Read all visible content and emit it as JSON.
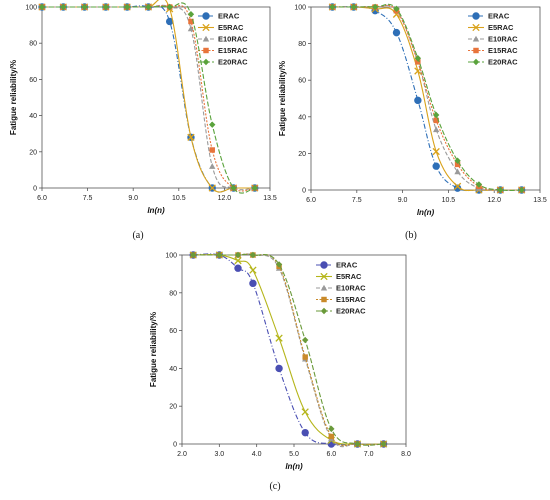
{
  "colors": {
    "ERAC": "#2e6fb7",
    "E5RAC": "#d9a21b",
    "E10RAC": "#9a9a9a",
    "E15RAC": "#e8743b",
    "E20RAC": "#5aa33c",
    "c_ERAC": "#4a4fb3",
    "c_E5RAC": "#b5b51a",
    "c_E10RAC": "#9a9a9a",
    "c_E15RAC": "#c98a2a",
    "c_E20RAC": "#6a9a3a"
  },
  "chart_data": [
    {
      "type": "line",
      "panel_label": "(a)",
      "xlabel": "ln(n)",
      "ylabel": "Fatigue reliability/%",
      "xlim": [
        6.0,
        13.5
      ],
      "ylim": [
        0,
        100
      ],
      "xticks": [
        "6.0",
        "7.5",
        "9.0",
        "10.5",
        "12.0",
        "13.5"
      ],
      "yticks": [
        "0",
        "20",
        "40",
        "60",
        "80",
        "100"
      ],
      "legend_position": "top-right",
      "x": [
        6.0,
        6.7,
        7.4,
        8.1,
        8.8,
        9.5,
        10.2,
        10.9,
        11.6,
        12.3,
        13.0
      ],
      "series": [
        {
          "name": "ERAC",
          "values": [
            100,
            100,
            100,
            100,
            100,
            100,
            92,
            28,
            0,
            0,
            0
          ]
        },
        {
          "name": "E5RAC",
          "values": [
            100,
            100,
            100,
            100,
            100,
            100,
            99,
            28,
            0,
            0,
            0
          ]
        },
        {
          "name": "E10RAC",
          "values": [
            100,
            100,
            100,
            100,
            100,
            100,
            100,
            88,
            12,
            0,
            0
          ]
        },
        {
          "name": "E15RAC",
          "values": [
            100,
            100,
            100,
            100,
            100,
            100,
            100,
            92,
            21,
            0,
            0
          ]
        },
        {
          "name": "E20RAC",
          "values": [
            100,
            100,
            100,
            100,
            100,
            100,
            100,
            96,
            35,
            0,
            0
          ]
        }
      ]
    },
    {
      "type": "line",
      "panel_label": "(b)",
      "xlabel": "ln(n)",
      "ylabel": "Fatigue reliability/%",
      "xlim": [
        6.0,
        13.5
      ],
      "ylim": [
        0,
        100
      ],
      "xticks": [
        "6.0",
        "7.5",
        "9.0",
        "10.5",
        "12.0",
        "13.5"
      ],
      "yticks": [
        "0",
        "20",
        "40",
        "60",
        "80",
        "100"
      ],
      "legend_position": "top-right",
      "x": [
        6.7,
        7.4,
        8.1,
        8.8,
        9.5,
        10.1,
        10.8,
        11.5,
        12.2,
        12.9
      ],
      "series": [
        {
          "name": "ERAC",
          "values": [
            100,
            100,
            98,
            86,
            49,
            13,
            1,
            0,
            0,
            0
          ]
        },
        {
          "name": "E5RAC",
          "values": [
            100,
            100,
            99,
            96,
            65,
            21,
            2,
            0,
            0,
            0
          ]
        },
        {
          "name": "E10RAC",
          "values": [
            100,
            100,
            100,
            98,
            70,
            33,
            10,
            1,
            0,
            0
          ]
        },
        {
          "name": "E15RAC",
          "values": [
            100,
            100,
            100,
            98,
            70,
            38,
            14,
            2,
            0,
            0
          ]
        },
        {
          "name": "E20RAC",
          "values": [
            100,
            100,
            100,
            99,
            72,
            41,
            16,
            3,
            0,
            0
          ]
        }
      ]
    },
    {
      "type": "line",
      "panel_label": "(c)",
      "xlabel": "ln(n)",
      "ylabel": "Fatigue reliability/%",
      "xlim": [
        2.0,
        8.0
      ],
      "ylim": [
        0,
        100
      ],
      "xticks": [
        "2.0",
        "3.0",
        "4.0",
        "5.0",
        "6.0",
        "7.0",
        "8.0"
      ],
      "yticks": [
        "0",
        "20",
        "40",
        "60",
        "80",
        "100"
      ],
      "legend_position": "top-right",
      "x": [
        2.3,
        3.0,
        3.5,
        3.9,
        4.6,
        5.3,
        6.0,
        6.7,
        7.4
      ],
      "series": [
        {
          "name": "ERAC",
          "values": [
            100,
            100,
            93,
            85,
            40,
            6,
            0,
            0,
            0
          ]
        },
        {
          "name": "E5RAC",
          "values": [
            100,
            100,
            97,
            92,
            56,
            17,
            2,
            0,
            0
          ]
        },
        {
          "name": "E10RAC",
          "values": [
            100,
            100,
            100,
            100,
            93,
            45,
            3,
            0,
            0
          ]
        },
        {
          "name": "E15RAC",
          "values": [
            100,
            100,
            100,
            100,
            94,
            46,
            4,
            0,
            0
          ]
        },
        {
          "name": "E20RAC",
          "values": [
            100,
            100,
            100,
            100,
            95,
            55,
            8,
            0,
            0
          ]
        }
      ]
    }
  ]
}
